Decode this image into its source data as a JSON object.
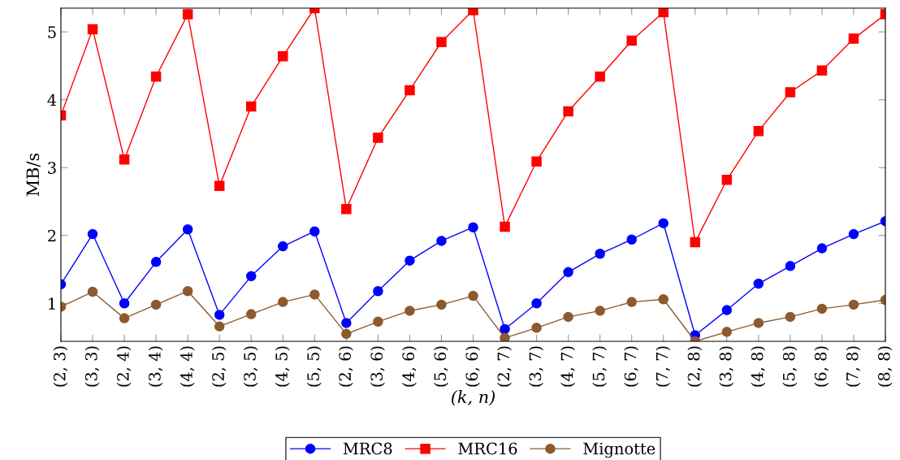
{
  "chart_data": {
    "type": "line",
    "xlabel": "(k, n)",
    "ylabel": "MB/s",
    "categories": [
      "(2, 3)",
      "(3, 3)",
      "(2, 4)",
      "(3, 4)",
      "(4, 4)",
      "(2, 5)",
      "(3, 5)",
      "(4, 5)",
      "(5, 5)",
      "(2, 6)",
      "(3, 6)",
      "(4, 6)",
      "(5, 6)",
      "(6, 6)",
      "(2, 7)",
      "(3, 7)",
      "(4, 7)",
      "(5, 7)",
      "(6, 7)",
      "(7, 7)",
      "(2, 8)",
      "(3, 8)",
      "(4, 8)",
      "(5, 8)",
      "(6, 8)",
      "(7, 8)",
      "(8, 8)"
    ],
    "series": [
      {
        "name": "MRC8",
        "color": "#0000ff",
        "marker": "circle",
        "values": [
          1.28,
          2.02,
          1.0,
          1.61,
          2.09,
          0.83,
          1.4,
          1.84,
          2.06,
          0.71,
          1.18,
          1.63,
          1.92,
          2.12,
          0.62,
          1.0,
          1.46,
          1.73,
          1.94,
          2.18,
          0.53,
          0.9,
          1.29,
          1.55,
          1.81,
          2.02,
          2.21
        ]
      },
      {
        "name": "MRC16",
        "color": "#ff0000",
        "marker": "square",
        "values": [
          3.77,
          5.04,
          3.12,
          4.34,
          5.26,
          2.73,
          3.9,
          4.64,
          5.35,
          2.39,
          3.44,
          4.14,
          4.85,
          5.32,
          2.13,
          3.09,
          3.83,
          4.34,
          4.87,
          5.29,
          1.9,
          2.82,
          3.54,
          4.11,
          4.43,
          4.9,
          5.26
        ]
      },
      {
        "name": "Mignotte",
        "color": "#8c5a2e",
        "marker": "circle",
        "values": [
          0.95,
          1.17,
          0.78,
          0.98,
          1.18,
          0.66,
          0.84,
          1.02,
          1.13,
          0.55,
          0.73,
          0.89,
          0.98,
          1.11,
          0.49,
          0.64,
          0.8,
          0.89,
          1.02,
          1.06,
          0.44,
          0.58,
          0.71,
          0.8,
          0.92,
          0.98,
          1.05
        ]
      }
    ],
    "ylim": [
      0.44,
      5.35
    ],
    "yticks": [
      1,
      2,
      3,
      4,
      5
    ],
    "grid": false,
    "legend": "bottom",
    "line_style": "solid"
  }
}
